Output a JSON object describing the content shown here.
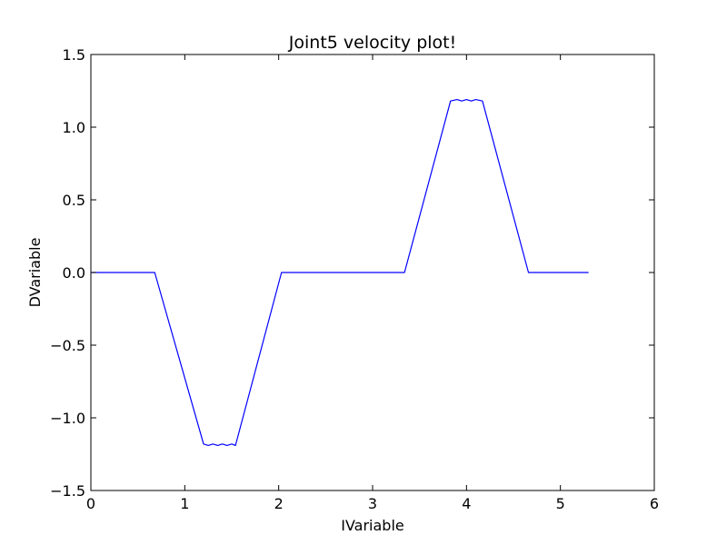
{
  "chart_data": {
    "type": "line",
    "title": "Joint5 velocity plot!",
    "xlabel": "IVariable",
    "ylabel": "DVariable",
    "xlim": [
      0,
      6
    ],
    "ylim": [
      -1.5,
      1.5
    ],
    "xticks": [
      0,
      1,
      2,
      3,
      4,
      5,
      6
    ],
    "xtick_labels": [
      "0",
      "1",
      "2",
      "3",
      "4",
      "5",
      "6"
    ],
    "yticks": [
      -1.5,
      -1.0,
      -0.5,
      0.0,
      0.5,
      1.0,
      1.5
    ],
    "ytick_labels": [
      "−1.5",
      "−1.0",
      "−0.5",
      "0.0",
      "0.5",
      "1.0",
      "1.5"
    ],
    "grid": false,
    "series": [
      {
        "color": "#0000ff",
        "x": [
          0,
          0.68,
          1.2,
          1.25,
          1.3,
          1.35,
          1.4,
          1.45,
          1.5,
          1.54,
          2.03,
          3.34,
          3.83,
          3.9,
          3.95,
          4.0,
          4.05,
          4.1,
          4.17,
          4.66,
          5.3
        ],
        "y": [
          0,
          0,
          -1.18,
          -1.19,
          -1.18,
          -1.19,
          -1.18,
          -1.19,
          -1.18,
          -1.19,
          0,
          0,
          1.18,
          1.19,
          1.18,
          1.19,
          1.18,
          1.19,
          1.18,
          0,
          0
        ]
      }
    ]
  }
}
